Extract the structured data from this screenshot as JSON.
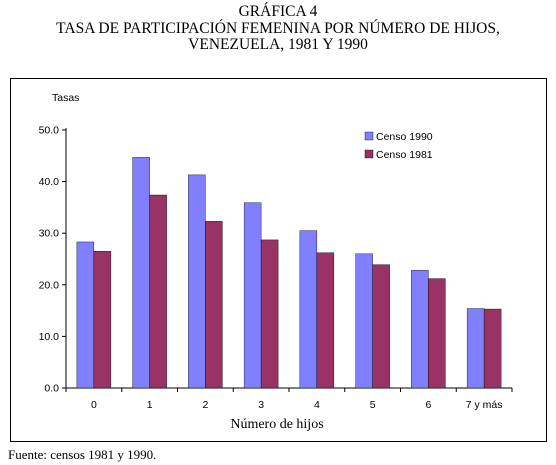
{
  "header": {
    "line1": "GRÁFICA 4",
    "line2": "TASA DE PARTICIPACIÓN FEMENINA POR NÚMERO DE HIJOS,",
    "line3": "VENEZUELA, 1981 Y 1990"
  },
  "source": "Fuente: censos 1981 y 1990.",
  "chart_data": {
    "type": "bar",
    "title": "TASA DE PARTICIPACIÓN FEMENINA POR NÚMERO DE HIJOS, VENEZUELA, 1981 Y 1990",
    "ylabel": "Tasas",
    "xlabel": "Número de hijos",
    "ylim": [
      0,
      50
    ],
    "yticks": [
      "0.0",
      "10.0",
      "20.0",
      "30.0",
      "40.0",
      "50.0"
    ],
    "grid": false,
    "legend_position": "top-right",
    "categories": [
      "0",
      "1",
      "2",
      "3",
      "4",
      "5",
      "6",
      "7 y más"
    ],
    "series": [
      {
        "name": "Censo 1990",
        "color": "#8080ff",
        "values": [
          28.3,
          44.7,
          41.3,
          35.9,
          30.5,
          26.0,
          22.8,
          15.4
        ]
      },
      {
        "name": "Censo 1981",
        "color": "#993366",
        "values": [
          26.5,
          37.4,
          32.3,
          28.7,
          26.2,
          23.9,
          21.2,
          15.3
        ]
      }
    ]
  }
}
